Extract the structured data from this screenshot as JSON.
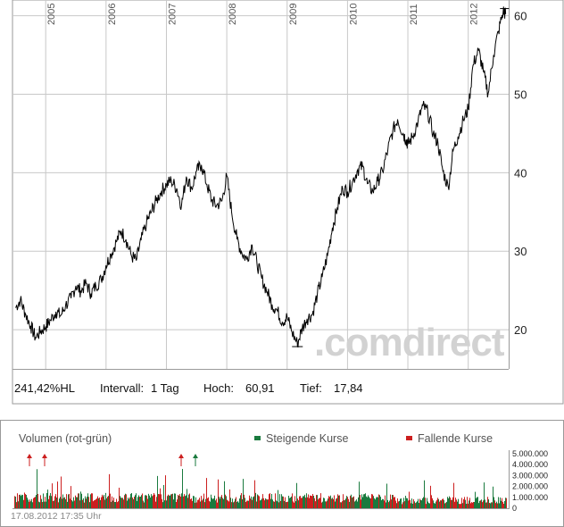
{
  "app": {
    "watermark": ".comdirect"
  },
  "chart_data": [
    {
      "type": "line",
      "title": "",
      "x_tick_labels": [
        "2005",
        "2006",
        "2007",
        "2008",
        "2009",
        "2010",
        "2011",
        "2012"
      ],
      "y_tick_labels": [
        "20",
        "30",
        "40",
        "50",
        "60"
      ],
      "ylim": [
        15,
        62
      ],
      "xlim": [
        2004.45,
        2012.67
      ],
      "grid": true,
      "series": [
        {
          "color": "#000000",
          "points": [
            [
              2004.5,
              22.8
            ],
            [
              2004.58,
              23.8
            ],
            [
              2004.66,
              22.1
            ],
            [
              2004.75,
              20.5
            ],
            [
              2004.83,
              19.0
            ],
            [
              2004.92,
              19.8
            ],
            [
              2005.0,
              20.4
            ],
            [
              2005.08,
              21.2
            ],
            [
              2005.17,
              22.3
            ],
            [
              2005.25,
              21.8
            ],
            [
              2005.33,
              23.1
            ],
            [
              2005.42,
              24.0
            ],
            [
              2005.5,
              25.6
            ],
            [
              2005.58,
              24.9
            ],
            [
              2005.67,
              25.9
            ],
            [
              2005.75,
              24.6
            ],
            [
              2005.83,
              25.6
            ],
            [
              2005.92,
              26.4
            ],
            [
              2006.0,
              28.2
            ],
            [
              2006.08,
              29.6
            ],
            [
              2006.17,
              31.2
            ],
            [
              2006.25,
              32.6
            ],
            [
              2006.33,
              31.5
            ],
            [
              2006.42,
              29.4
            ],
            [
              2006.5,
              28.8
            ],
            [
              2006.58,
              31.4
            ],
            [
              2006.67,
              33.6
            ],
            [
              2006.75,
              35.0
            ],
            [
              2006.83,
              36.4
            ],
            [
              2006.92,
              37.7
            ],
            [
              2007.0,
              38.5
            ],
            [
              2007.08,
              39.0
            ],
            [
              2007.17,
              38.0
            ],
            [
              2007.25,
              35.8
            ],
            [
              2007.33,
              39.5
            ],
            [
              2007.42,
              38.0
            ],
            [
              2007.5,
              40.2
            ],
            [
              2007.58,
              41.0
            ],
            [
              2007.67,
              38.5
            ],
            [
              2007.75,
              36.5
            ],
            [
              2007.83,
              35.8
            ],
            [
              2007.92,
              36.4
            ],
            [
              2008.0,
              39.6
            ],
            [
              2008.08,
              35.0
            ],
            [
              2008.17,
              31.5
            ],
            [
              2008.25,
              29.8
            ],
            [
              2008.33,
              29.0
            ],
            [
              2008.42,
              30.8
            ],
            [
              2008.5,
              28.5
            ],
            [
              2008.58,
              26.5
            ],
            [
              2008.67,
              24.8
            ],
            [
              2008.75,
              23.2
            ],
            [
              2008.83,
              22.5
            ],
            [
              2008.92,
              21.0
            ],
            [
              2009.0,
              21.6
            ],
            [
              2009.08,
              19.7
            ],
            [
              2009.17,
              18.2
            ],
            [
              2009.25,
              20.2
            ],
            [
              2009.33,
              21.4
            ],
            [
              2009.42,
              22.0
            ],
            [
              2009.5,
              24.5
            ],
            [
              2009.58,
              26.7
            ],
            [
              2009.67,
              29.5
            ],
            [
              2009.75,
              33.0
            ],
            [
              2009.83,
              35.5
            ],
            [
              2009.92,
              38.0
            ],
            [
              2010.0,
              37.6
            ],
            [
              2010.08,
              38.8
            ],
            [
              2010.17,
              40.4
            ],
            [
              2010.25,
              40.8
            ],
            [
              2010.33,
              38.6
            ],
            [
              2010.42,
              37.6
            ],
            [
              2010.5,
              38.9
            ],
            [
              2010.58,
              40.2
            ],
            [
              2010.67,
              43.0
            ],
            [
              2010.75,
              45.3
            ],
            [
              2010.83,
              46.8
            ],
            [
              2010.92,
              45.0
            ],
            [
              2011.0,
              43.6
            ],
            [
              2010.97,
              44.2
            ],
            [
              2011.08,
              44.6
            ],
            [
              2011.17,
              46.6
            ],
            [
              2011.25,
              48.5
            ],
            [
              2011.33,
              47.7
            ],
            [
              2011.42,
              45.0
            ],
            [
              2011.5,
              43.7
            ],
            [
              2011.58,
              40.2
            ],
            [
              2011.67,
              38.1
            ],
            [
              2011.75,
              42.8
            ],
            [
              2011.83,
              44.6
            ],
            [
              2011.92,
              46.7
            ],
            [
              2012.0,
              48.1
            ],
            [
              2012.08,
              53.7
            ],
            [
              2012.17,
              55.6
            ],
            [
              2012.25,
              52.9
            ],
            [
              2012.33,
              50.1
            ],
            [
              2012.42,
              55.0
            ],
            [
              2012.5,
              58.0
            ],
            [
              2012.58,
              60.6
            ],
            [
              2012.62,
              60.2
            ]
          ]
        }
      ]
    },
    {
      "type": "bar",
      "title": "Volumen (rot-grün)",
      "y_tick_labels": [
        "5.000.000",
        "4.000.000",
        "3.000.000",
        "2.000.000",
        "1.000.000",
        "0"
      ],
      "ylim": [
        0,
        5000000
      ],
      "series": [
        {
          "name": "Steigende Kurse",
          "color": "#1a7a3e"
        },
        {
          "name": "Fallende Kurse",
          "color": "#cc1f1f"
        }
      ]
    }
  ],
  "stats": {
    "change": "241,42%HL",
    "interval_label": "Intervall:",
    "interval_value": "1 Tag",
    "high_label": "Hoch:",
    "high_value": "60,91",
    "low_label": "Tief:",
    "low_value": "17,84"
  },
  "timestamp": "17.08.2012 17:35 Uhr"
}
